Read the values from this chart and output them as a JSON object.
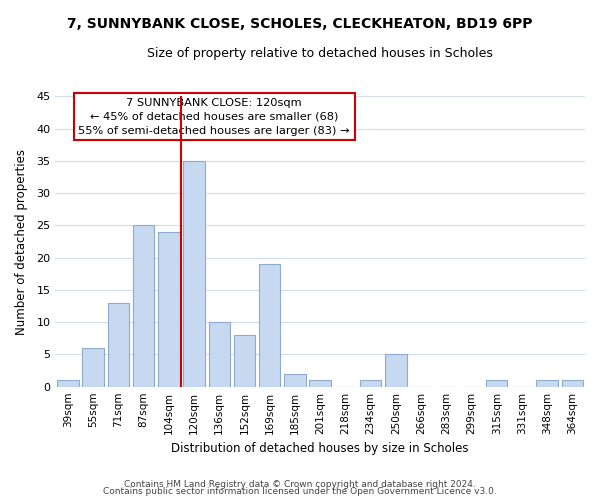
{
  "title": "7, SUNNYBANK CLOSE, SCHOLES, CLECKHEATON, BD19 6PP",
  "subtitle": "Size of property relative to detached houses in Scholes",
  "xlabel": "Distribution of detached houses by size in Scholes",
  "ylabel": "Number of detached properties",
  "bar_labels": [
    "39sqm",
    "55sqm",
    "71sqm",
    "87sqm",
    "104sqm",
    "120sqm",
    "136sqm",
    "152sqm",
    "169sqm",
    "185sqm",
    "201sqm",
    "218sqm",
    "234sqm",
    "250sqm",
    "266sqm",
    "283sqm",
    "299sqm",
    "315sqm",
    "331sqm",
    "348sqm",
    "364sqm"
  ],
  "bar_values": [
    1,
    6,
    13,
    25,
    24,
    35,
    10,
    8,
    19,
    2,
    1,
    0,
    1,
    5,
    0,
    0,
    0,
    1,
    0,
    1,
    1
  ],
  "bar_color": "#c6d9f1",
  "bar_edge_color": "#8eaacd",
  "vline_x_index": 5,
  "vline_color": "#cc0000",
  "annotation_title": "7 SUNNYBANK CLOSE: 120sqm",
  "annotation_line1": "← 45% of detached houses are smaller (68)",
  "annotation_line2": "55% of semi-detached houses are larger (83) →",
  "annotation_box_color": "#ffffff",
  "annotation_box_edge": "#cc0000",
  "ylim": [
    0,
    45
  ],
  "yticks": [
    0,
    5,
    10,
    15,
    20,
    25,
    30,
    35,
    40,
    45
  ],
  "footer1": "Contains HM Land Registry data © Crown copyright and database right 2024.",
  "footer2": "Contains public sector information licensed under the Open Government Licence v3.0.",
  "background_color": "#ffffff",
  "grid_color": "#d0dce8"
}
